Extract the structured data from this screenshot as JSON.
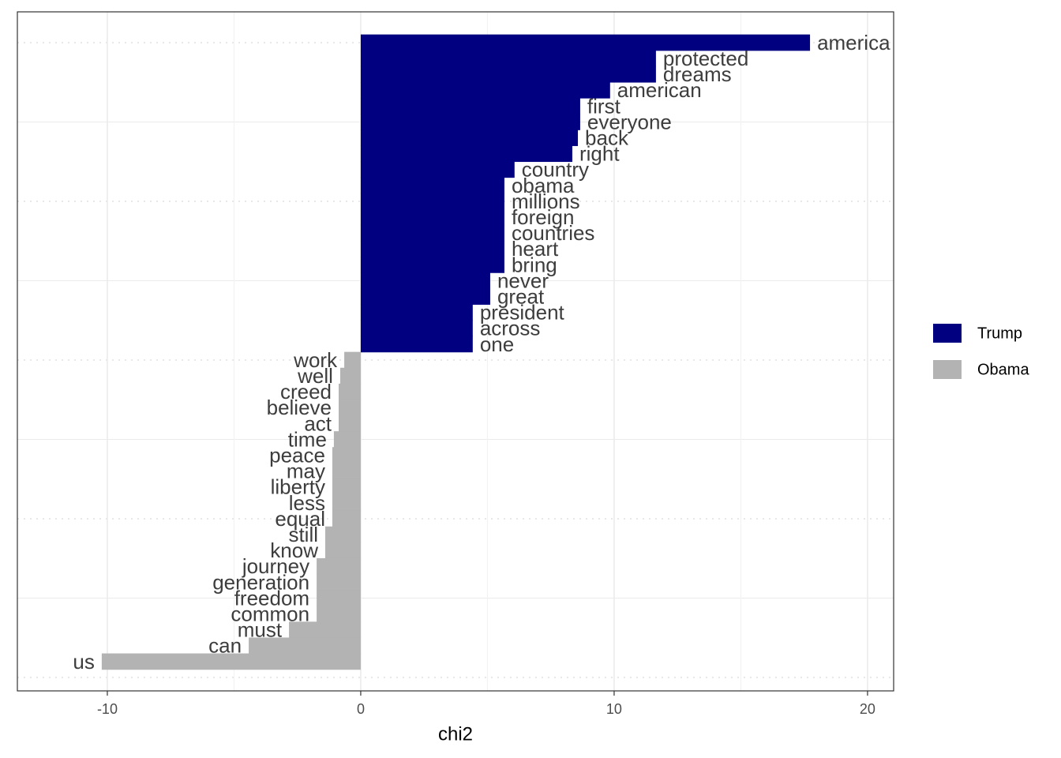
{
  "chart_data": {
    "type": "bar",
    "orientation": "horizontal",
    "x_label": "chi2",
    "categories": [
      "america",
      "protected",
      "dreams",
      "american",
      "first",
      "everyone",
      "back",
      "right",
      "country",
      "obama",
      "millions",
      "foreign",
      "countries",
      "heart",
      "bring",
      "never",
      "great",
      "president",
      "across",
      "one",
      "work",
      "well",
      "creed",
      "believe",
      "act",
      "time",
      "peace",
      "may",
      "liberty",
      "less",
      "equal",
      "still",
      "know",
      "journey",
      "generation",
      "freedom",
      "common",
      "must",
      "can",
      "us"
    ],
    "series": [
      {
        "name": "Trump",
        "color": "#000080",
        "values": [
          17.73,
          11.65,
          11.65,
          9.84,
          8.66,
          8.66,
          8.57,
          8.35,
          6.07,
          5.67,
          5.67,
          5.67,
          5.67,
          5.67,
          5.67,
          5.11,
          5.11,
          4.42,
          4.42,
          4.42,
          null,
          null,
          null,
          null,
          null,
          null,
          null,
          null,
          null,
          null,
          null,
          null,
          null,
          null,
          null,
          null,
          null,
          null,
          null,
          null
        ]
      },
      {
        "name": "Obama",
        "color": "#b3b3b3",
        "values": [
          null,
          null,
          null,
          null,
          null,
          null,
          null,
          null,
          null,
          null,
          null,
          null,
          null,
          null,
          null,
          null,
          null,
          null,
          null,
          null,
          -0.65,
          -0.81,
          -0.87,
          -0.87,
          -0.87,
          -1.06,
          -1.12,
          -1.12,
          -1.12,
          -1.12,
          -1.12,
          -1.4,
          -1.4,
          -1.74,
          -1.74,
          -1.74,
          -1.74,
          -2.83,
          -4.42,
          -10.22
        ]
      }
    ],
    "xlim": [
      -13.55,
      21.03
    ],
    "xticks": [
      -10,
      0,
      10,
      20
    ],
    "grid": true,
    "legend": "right"
  }
}
